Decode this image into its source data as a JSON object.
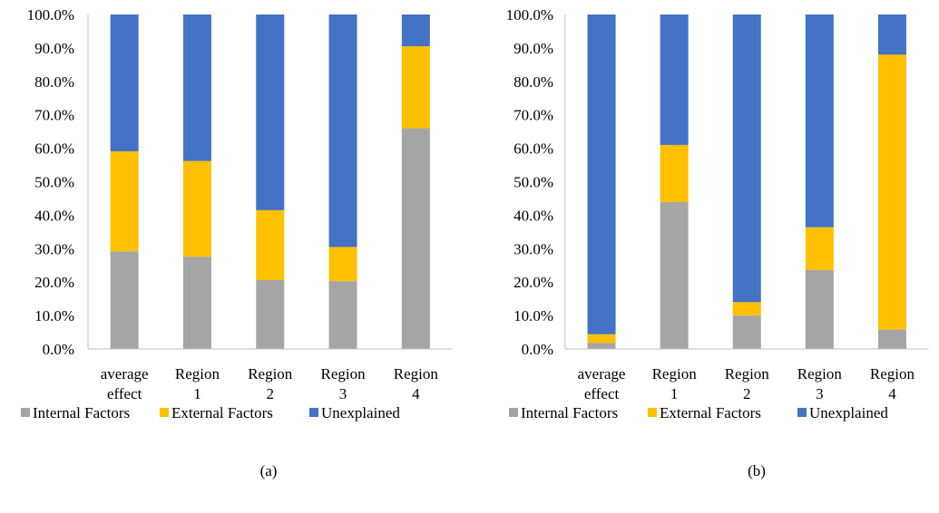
{
  "colors": {
    "Internal Factors": "#a5a5a5",
    "External Factors": "#ffc000",
    "Unexplained": "#4472c4",
    "axis": "#bfbfbf"
  },
  "chart_data": [
    {
      "type": "bar",
      "stacked": true,
      "panel_label": "(a)",
      "categories": [
        [
          "average",
          "effect"
        ],
        [
          "Region",
          "1"
        ],
        [
          "Region",
          "2"
        ],
        [
          "Region",
          "3"
        ],
        [
          "Region",
          "4"
        ]
      ],
      "series": [
        {
          "name": "Internal Factors",
          "values": [
            29.2,
            27.6,
            20.6,
            20.3,
            66.0
          ]
        },
        {
          "name": "External Factors",
          "values": [
            29.9,
            28.6,
            20.9,
            10.2,
            24.5
          ]
        },
        {
          "name": "Unexplained",
          "values": [
            40.9,
            43.8,
            58.5,
            69.5,
            9.5
          ]
        }
      ],
      "ylim": [
        0,
        100
      ],
      "yticks": [
        "0.0%",
        "10.0%",
        "20.0%",
        "30.0%",
        "40.0%",
        "50.0%",
        "60.0%",
        "70.0%",
        "80.0%",
        "90.0%",
        "100.0%"
      ],
      "grid": false,
      "legend": "bottom"
    },
    {
      "type": "bar",
      "stacked": true,
      "panel_label": "(b)",
      "categories": [
        [
          "average",
          "effect"
        ],
        [
          "Region",
          "1"
        ],
        [
          "Region",
          "2"
        ],
        [
          "Region",
          "3"
        ],
        [
          "Region",
          "4"
        ]
      ],
      "series": [
        {
          "name": "Internal Factors",
          "values": [
            1.8,
            43.9,
            10.0,
            23.6,
            5.8
          ]
        },
        {
          "name": "External Factors",
          "values": [
            2.6,
            17.1,
            4.0,
            12.8,
            82.2
          ]
        },
        {
          "name": "Unexplained",
          "values": [
            95.6,
            39.0,
            86.0,
            63.6,
            12.0
          ]
        }
      ],
      "ylim": [
        0,
        100
      ],
      "yticks": [
        "0.0%",
        "10.0%",
        "20.0%",
        "30.0%",
        "40.0%",
        "50.0%",
        "60.0%",
        "70.0%",
        "80.0%",
        "90.0%",
        "100.0%"
      ],
      "grid": false,
      "legend": "bottom"
    }
  ]
}
